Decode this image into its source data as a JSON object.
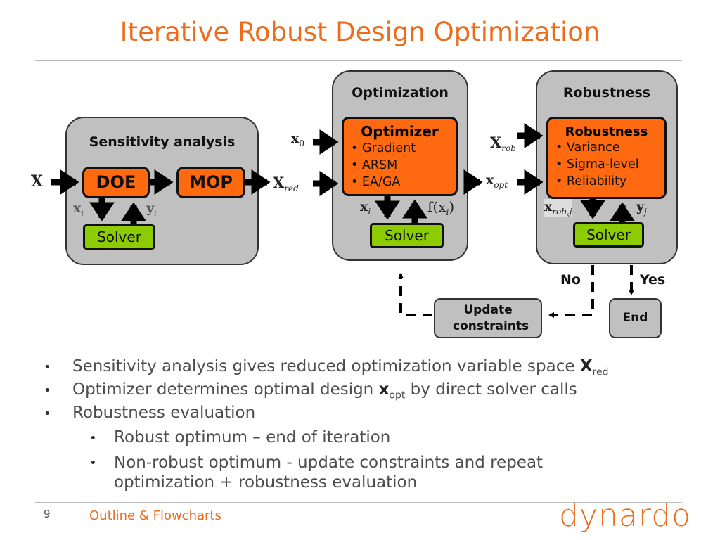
{
  "title": "Iterative Robust Design Optimization",
  "colors": {
    "title": "#ec6c1c",
    "block_orange": "#ff6a10",
    "solver_green": "#8ccc00",
    "panel_gray": "#c0c0c0"
  },
  "diagram": {
    "sensitivity": {
      "title": "Sensitivity analysis",
      "doe": "DOE",
      "mop": "MOP",
      "solver": "Solver",
      "input": "X",
      "down_label": "x",
      "down_sub": "i",
      "up_label": "y",
      "up_sub": "i",
      "output": "X",
      "output_sub": "red"
    },
    "optimization": {
      "title": "Optimization",
      "block_title": "Optimizer",
      "items": [
        "Gradient",
        "ARSM",
        "EA/GA"
      ],
      "solver": "Solver",
      "in1": "x",
      "in1_sub": "0",
      "in2": "X",
      "in2_sub": "red",
      "down_label": "x",
      "down_sub": "i",
      "up_label": "f(x",
      "up_sub": "i",
      "up_close": ")",
      "output": "x",
      "output_sub": "opt"
    },
    "robustness": {
      "title": "Robustness",
      "block_title": "Robustness",
      "items": [
        "Variance",
        "Sigma-level",
        "Reliability"
      ],
      "solver": "Solver",
      "in1": "X",
      "in1_sub": "rob",
      "down_label": "x",
      "down_sub": "rob,j",
      "up_label": "y",
      "up_sub": "j"
    },
    "no_label": "No",
    "yes_label": "Yes",
    "update": "Update constraints",
    "end": "End"
  },
  "bullets": [
    {
      "level": 1,
      "text": "Sensitivity analysis gives reduced optimization variable space ",
      "bold": "X",
      "sub": "red",
      "after": ""
    },
    {
      "level": 1,
      "text": "Optimizer determines optimal design ",
      "bold": "x",
      "sub": "opt",
      "after": " by direct solver calls"
    },
    {
      "level": 1,
      "text": "Robustness evaluation"
    },
    {
      "level": 2,
      "text": "Robust optimum – end of iteration"
    },
    {
      "level": 2,
      "text": "Non-robust optimum - update constraints and repeat optimization + robustness evaluation"
    }
  ],
  "footer": {
    "page": "9",
    "section": "Outline & Flowcharts",
    "logo": "dynardo"
  }
}
